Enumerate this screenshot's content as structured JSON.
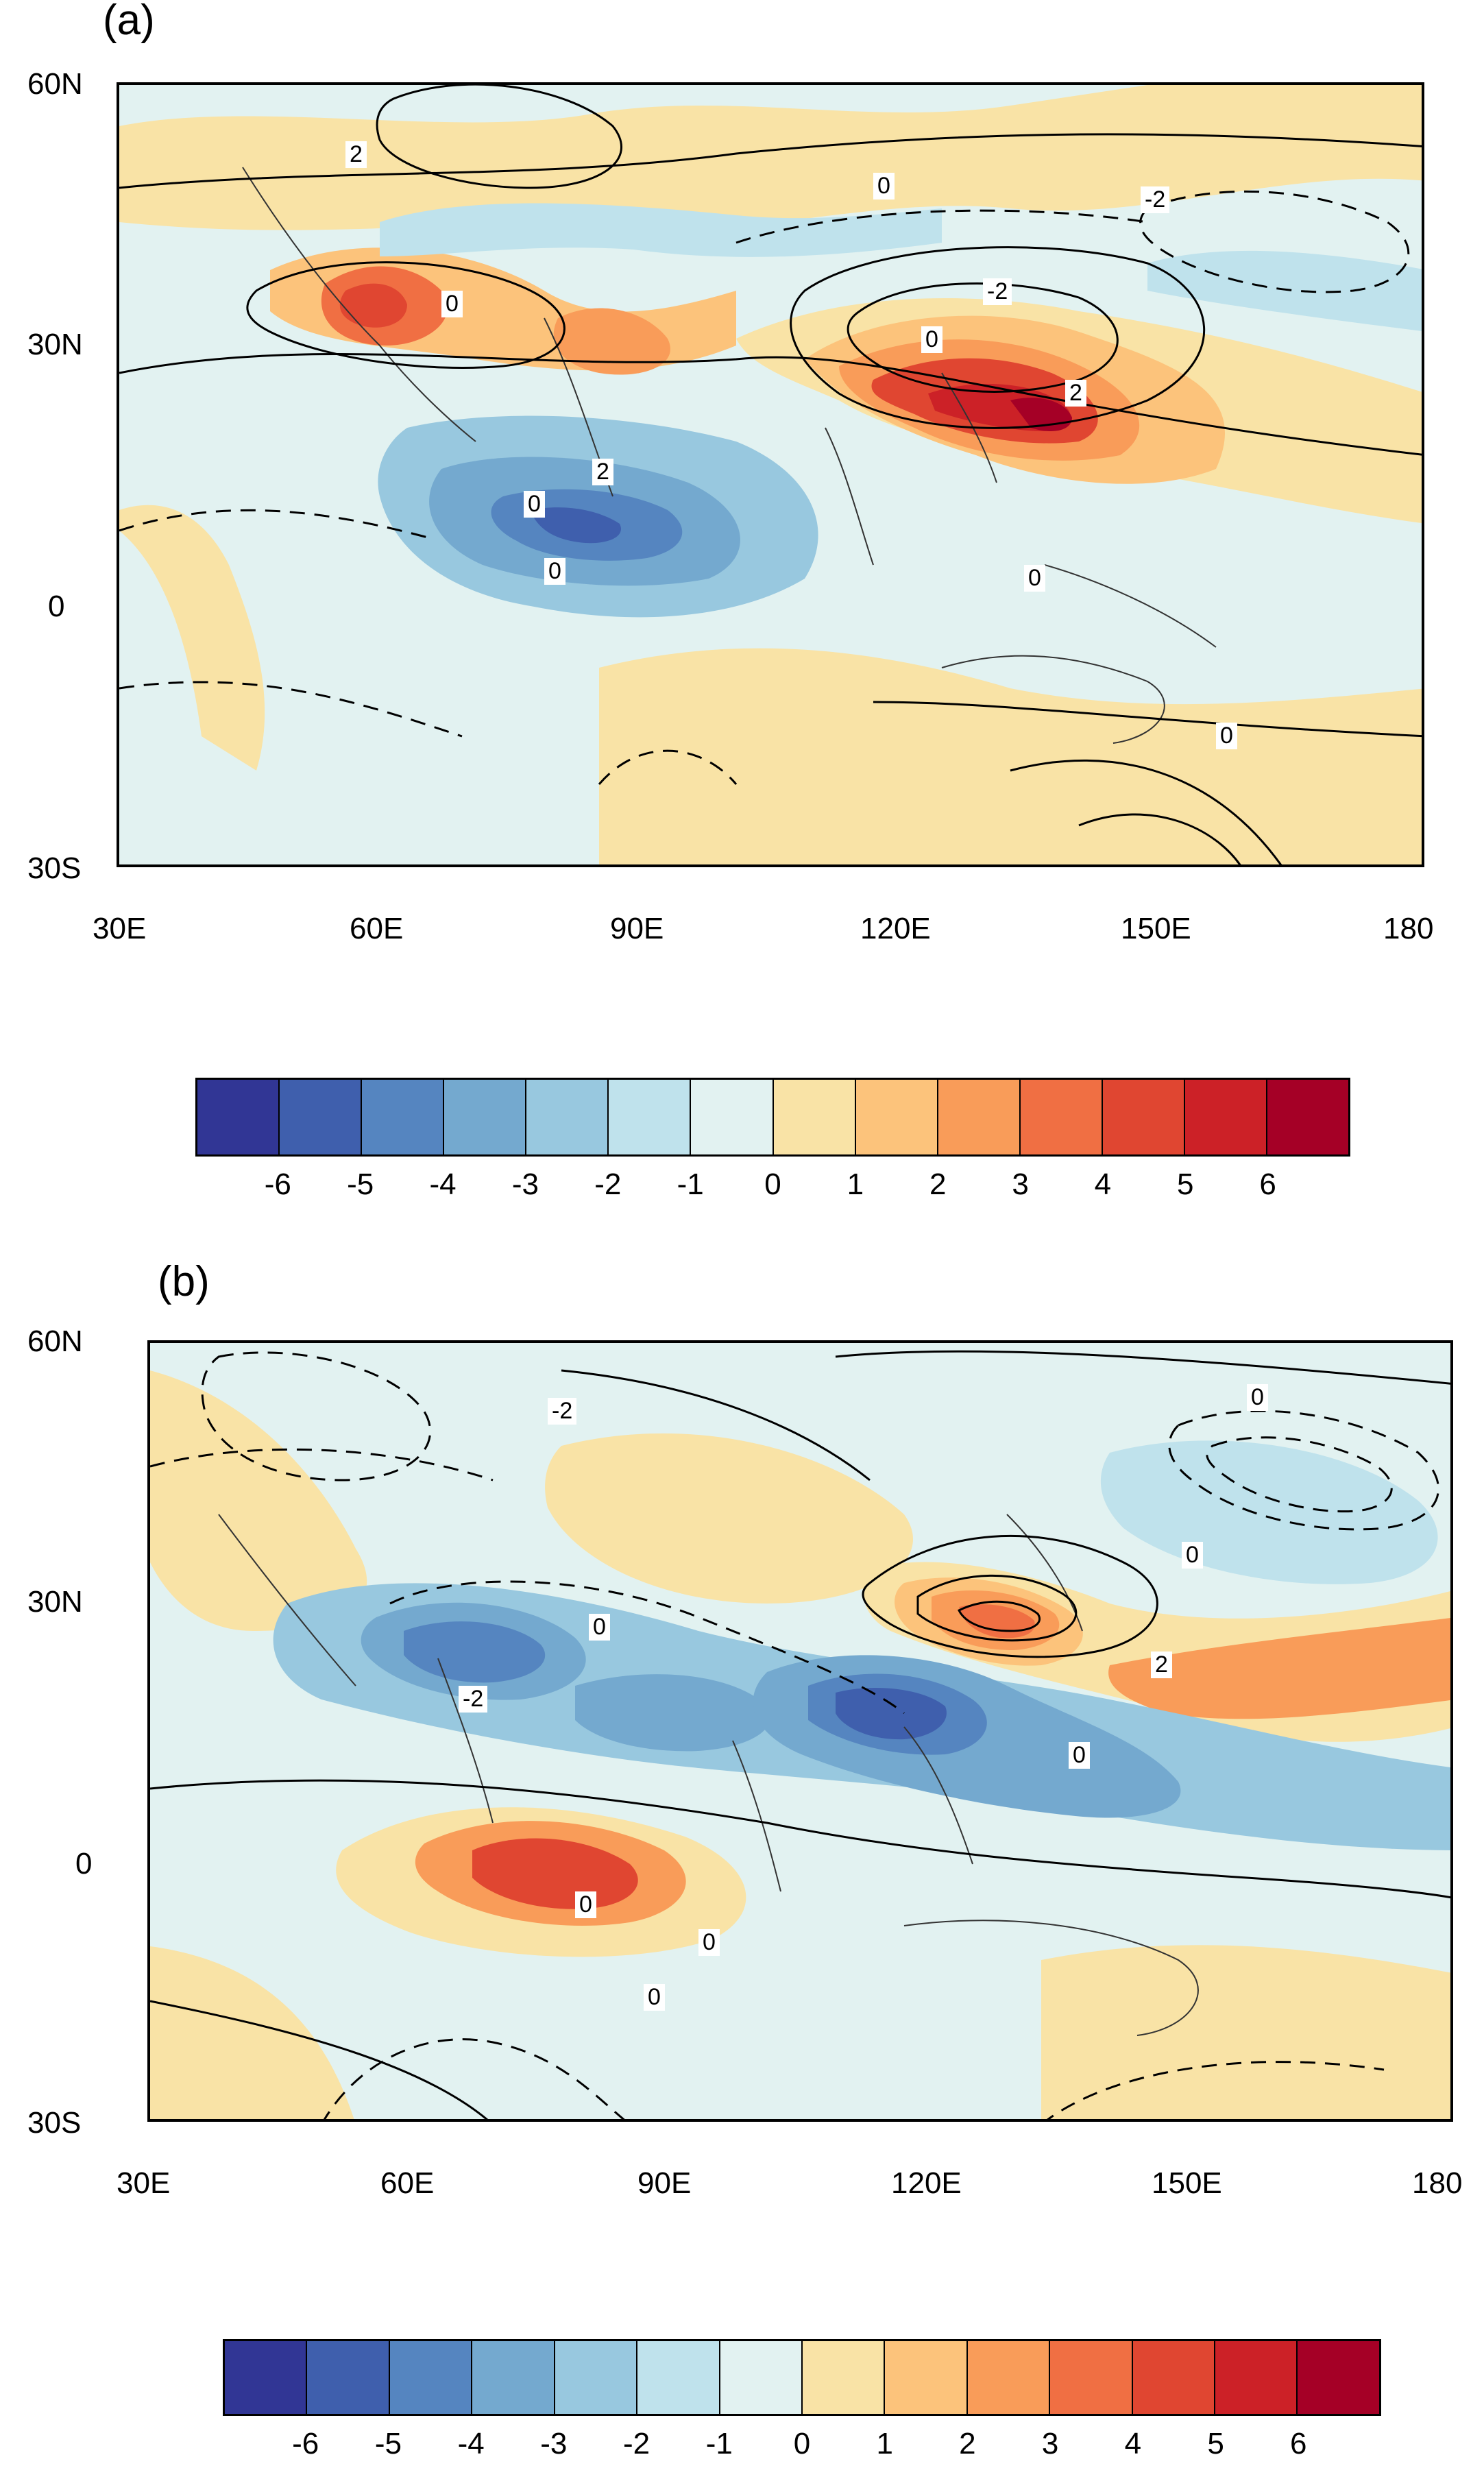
{
  "panels": [
    {
      "label": "(a)"
    },
    {
      "label": "(b)"
    }
  ],
  "axes": {
    "lon_labels": [
      "30E",
      "60E",
      "90E",
      "120E",
      "150E",
      "180"
    ],
    "lat_labels": [
      "60N",
      "30N",
      "0",
      "30S"
    ]
  },
  "colorbar": {
    "labels": [
      "-6",
      "-5",
      "-4",
      "-3",
      "-2",
      "-1",
      "0",
      "1",
      "2",
      "3",
      "4",
      "5",
      "6"
    ],
    "colors": [
      "#313695",
      "#3f5fad",
      "#5585c0",
      "#74a9cf",
      "#98c8df",
      "#bfe2ec",
      "#e2f2f1",
      "#f9e3a6",
      "#fcc37b",
      "#f99c59",
      "#f06f43",
      "#e04631",
      "#cc2127",
      "#a50026"
    ]
  },
  "contour_labels": {
    "a": [
      "2",
      "0",
      "-2",
      "0",
      "-2",
      "0",
      "0",
      "2",
      "2",
      "0",
      "0",
      "0"
    ],
    "b": [
      "-2",
      "0",
      "0",
      "0",
      "2",
      "-2",
      "0",
      "0",
      "0",
      "0"
    ]
  }
}
